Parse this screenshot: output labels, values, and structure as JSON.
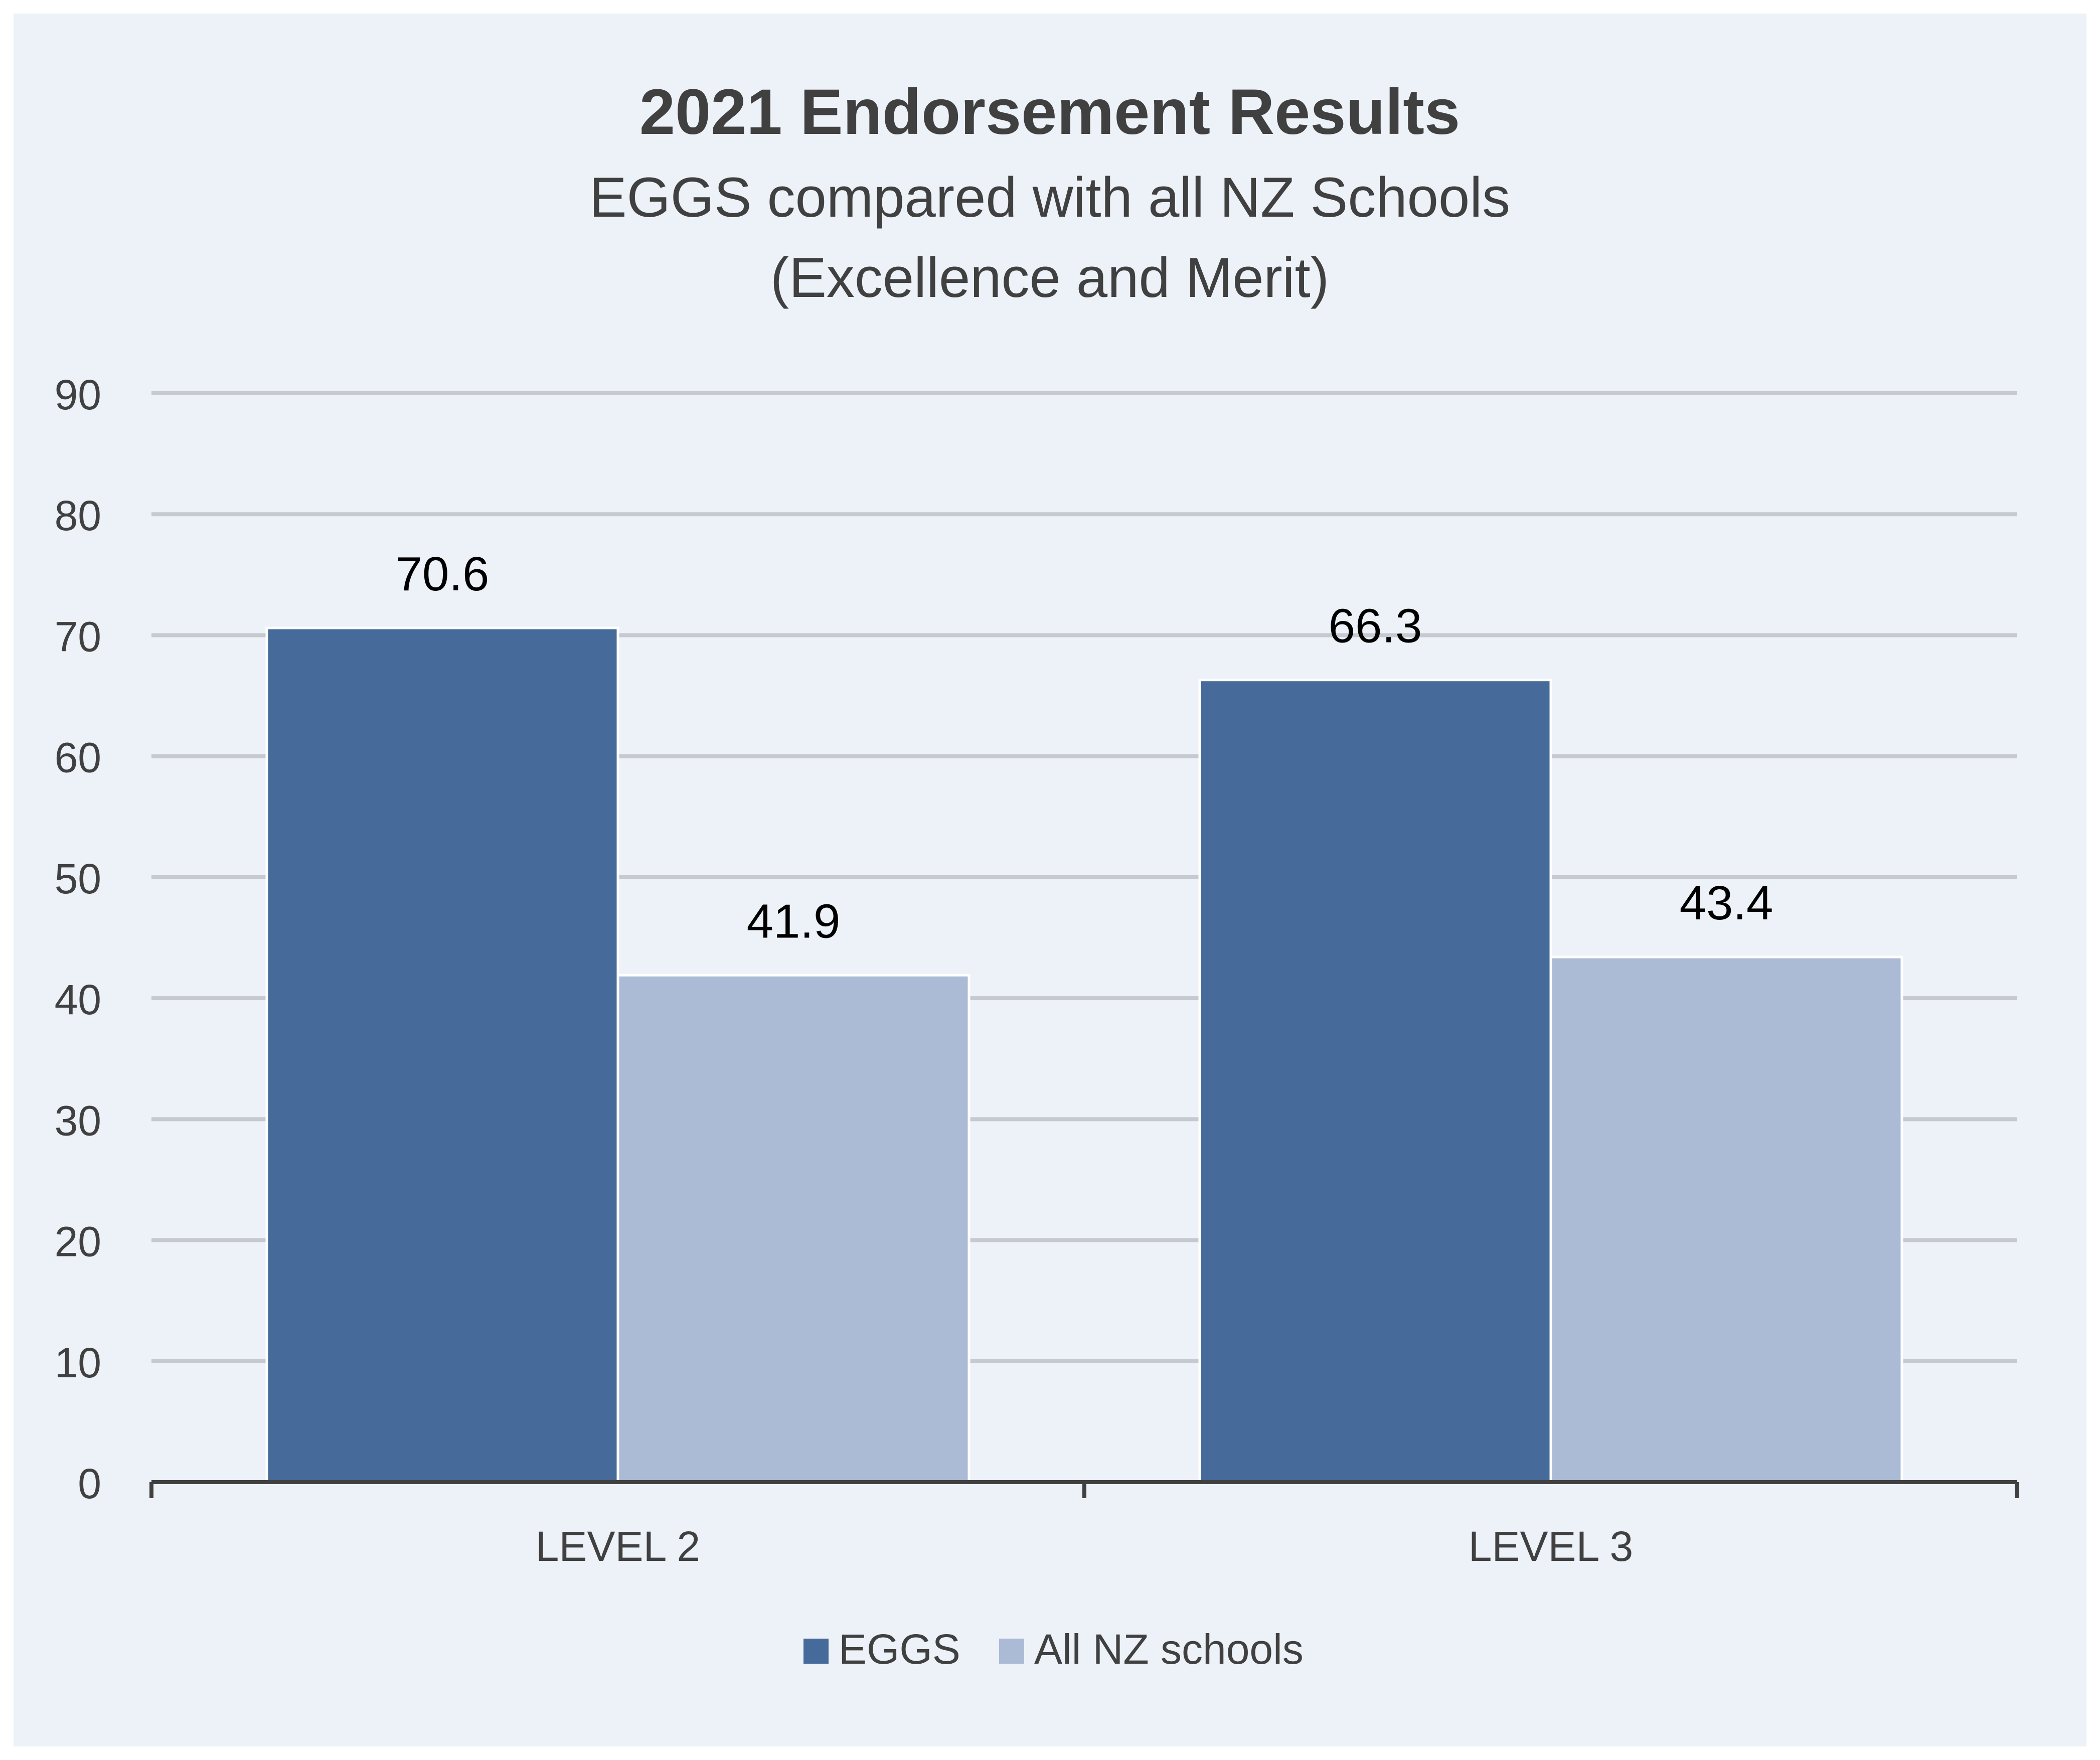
{
  "chart_data": {
    "type": "bar",
    "title": "2021 Endorsement Results",
    "subtitle_lines": [
      "EGGS compared with all NZ Schools",
      "(Excellence and Merit)"
    ],
    "categories": [
      "LEVEL 2",
      "LEVEL 3"
    ],
    "series": [
      {
        "name": "EGGS",
        "values": [
          70.6,
          66.3
        ],
        "color": "#466a99"
      },
      {
        "name": "All NZ schools",
        "values": [
          41.9,
          43.4
        ],
        "color": "#abbad5"
      }
    ],
    "data_labels": {
      "EGGS": [
        "70.6",
        "66.3"
      ],
      "All NZ schools": [
        "41.9",
        "43.4"
      ]
    },
    "ylim": [
      0,
      90
    ],
    "yticks": [
      "0",
      "10",
      "20",
      "30",
      "40",
      "50",
      "60",
      "70",
      "80",
      "90"
    ],
    "grid": true,
    "legend_position": "bottom-center",
    "colors": {
      "background": "#ecf2f8",
      "gridline": "#c6c9cf",
      "axis": "#404040",
      "text": "#404040",
      "label": "#000000"
    }
  }
}
